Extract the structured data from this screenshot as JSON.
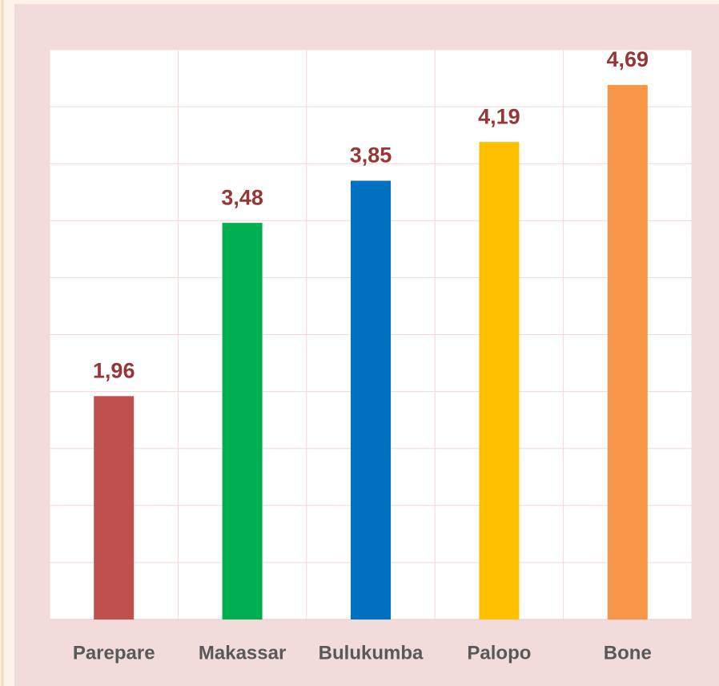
{
  "chart_data": {
    "type": "bar",
    "categories": [
      "Parepare",
      "Makassar",
      "Bulukumba",
      "Palopo",
      "Bone"
    ],
    "values": [
      1.96,
      3.48,
      3.85,
      4.19,
      4.69
    ],
    "value_labels": [
      "1,96",
      "3,48",
      "3,85",
      "4,19",
      "4,69"
    ],
    "colors": [
      "#c0504d",
      "#00b050",
      "#0070c0",
      "#ffc000",
      "#f79646"
    ],
    "ylim": [
      0,
      5
    ],
    "yticks": [
      0,
      0.5,
      1,
      1.5,
      2,
      2.5,
      3,
      3.5,
      4,
      4.5,
      5
    ],
    "grid": true
  }
}
